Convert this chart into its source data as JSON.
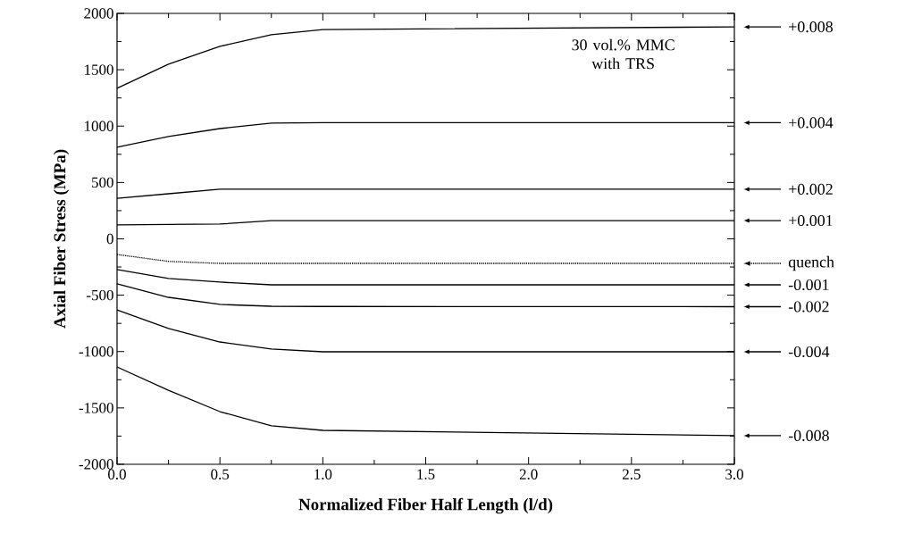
{
  "chart_data": {
    "type": "line",
    "xlabel": "Normalized Fiber Half Length (l/d)",
    "ylabel": "Axial Fiber Stress (MPa)",
    "annotations": [
      "30 vol.% MMC with TRS"
    ],
    "marker": "none",
    "line_style": "solid",
    "legend": "right",
    "xlim": [
      0,
      3
    ],
    "ylim": [
      -2000,
      2000
    ],
    "xticks": [
      {
        "value": 0,
        "label": "0.0"
      },
      {
        "value": 0.5,
        "label": "0.5"
      },
      {
        "value": 1,
        "label": "1.0"
      },
      {
        "value": 1.5,
        "label": "1.5"
      },
      {
        "value": 2,
        "label": "2.0"
      },
      {
        "value": 2.5,
        "label": "2.5"
      },
      {
        "value": 3,
        "label": "3.0"
      }
    ],
    "yticks": [
      -2000,
      -1500,
      -1000,
      -500,
      0,
      500,
      1000,
      1500,
      2000
    ],
    "x": [
      0,
      0.25,
      0.5,
      0.75,
      1.0,
      3.0
    ],
    "series": [
      {
        "name": "+0.008",
        "color": "#000000",
        "values": [
          1335,
          1549,
          1707,
          1810,
          1857,
          1880
        ]
      },
      {
        "name": "+0.004",
        "color": "#000000",
        "values": [
          812,
          907,
          978,
          1026,
          1030,
          1030
        ]
      },
      {
        "name": "+0.002",
        "color": "#000000",
        "values": [
          360,
          400,
          440,
          440,
          440,
          440
        ]
      },
      {
        "name": "+0.001",
        "color": "#000000",
        "values": [
          123,
          127,
          131,
          162,
          162,
          162
        ]
      },
      {
        "name": "quench",
        "color": "#000000",
        "line_style": "dotted",
        "values": [
          -139,
          -200,
          -218,
          -218,
          -218,
          -218
        ]
      },
      {
        "name": "-0.001",
        "color": "#000000",
        "values": [
          -273,
          -352,
          -384,
          -408,
          -408,
          -408
        ]
      },
      {
        "name": "-0.002",
        "color": "#000000",
        "values": [
          -400,
          -519,
          -582,
          -598,
          -600,
          -602
        ]
      },
      {
        "name": "-0.004",
        "color": "#000000",
        "values": [
          -630,
          -796,
          -915,
          -978,
          -1002,
          -1002
        ]
      },
      {
        "name": "-0.008",
        "color": "#000000",
        "values": [
          -1137,
          -1343,
          -1533,
          -1659,
          -1699,
          -1746
        ]
      }
    ]
  }
}
